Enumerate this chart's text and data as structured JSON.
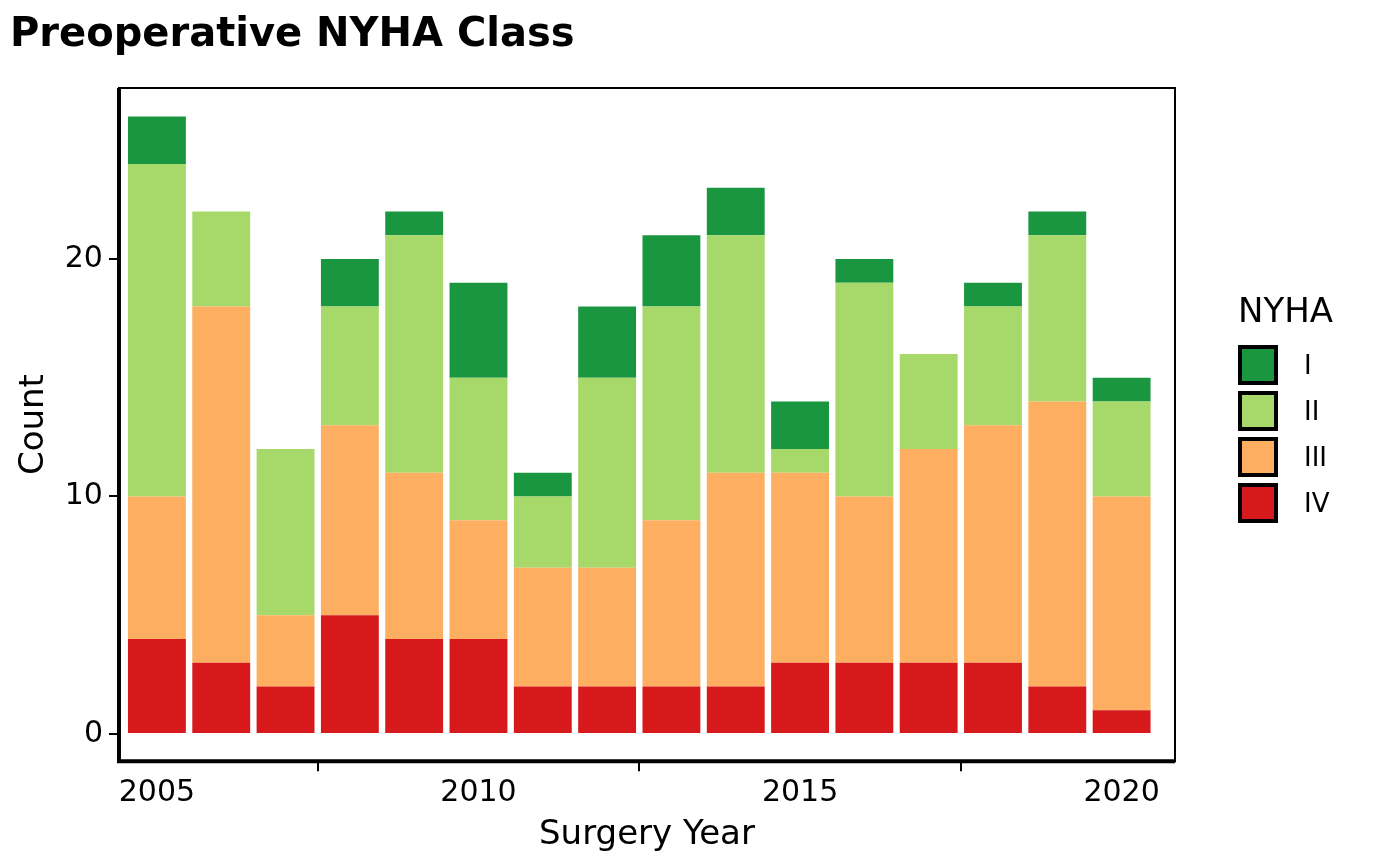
{
  "chart_data": {
    "type": "bar",
    "title": "Preoperative NYHA Class",
    "xlabel": "Surgery Year",
    "ylabel": "Count",
    "legend_title": "NYHA",
    "stacked": true,
    "legend": "right",
    "grid": false,
    "x": [
      2005,
      2006,
      2007,
      2008,
      2009,
      2010,
      2011,
      2012,
      2013,
      2014,
      2015,
      2016,
      2017,
      2018,
      2019,
      2020
    ],
    "xlim": [
      2004.41,
      2020.83
    ],
    "xticks": [
      2005,
      2010,
      2015,
      2020
    ],
    "ylim": [
      -1.15,
      27.2
    ],
    "yticks": [
      0,
      10,
      20
    ],
    "series": [
      {
        "name": "IV",
        "color": "#d7191c",
        "values": [
          4,
          3,
          2,
          5,
          4,
          4,
          2,
          2,
          2,
          2,
          3,
          3,
          3,
          3,
          2,
          1
        ]
      },
      {
        "name": "III",
        "color": "#fdae61",
        "values": [
          6,
          15,
          3,
          8,
          7,
          5,
          5,
          5,
          7,
          9,
          8,
          7,
          9,
          10,
          12,
          9
        ]
      },
      {
        "name": "II",
        "color": "#a6d96a",
        "values": [
          14,
          4,
          7,
          5,
          10,
          6,
          3,
          8,
          9,
          10,
          1,
          9,
          4,
          5,
          7,
          4
        ]
      },
      {
        "name": "I",
        "color": "#1a9641",
        "values": [
          2,
          0,
          0,
          2,
          1,
          4,
          1,
          3,
          3,
          2,
          2,
          1,
          0,
          1,
          1,
          1
        ]
      }
    ]
  }
}
